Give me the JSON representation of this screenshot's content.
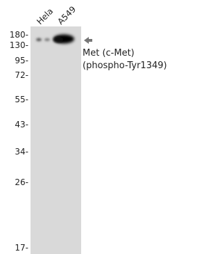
{
  "lanes": [
    "Hela",
    "A549"
  ],
  "markers": [
    "180-",
    "130-",
    "95-",
    "72-",
    "55-",
    "43-",
    "34-",
    "26-",
    "17-"
  ],
  "annotation": {
    "line1": "Met (c-Met)",
    "line2": "(phospho-Tyr1349)"
  }
}
